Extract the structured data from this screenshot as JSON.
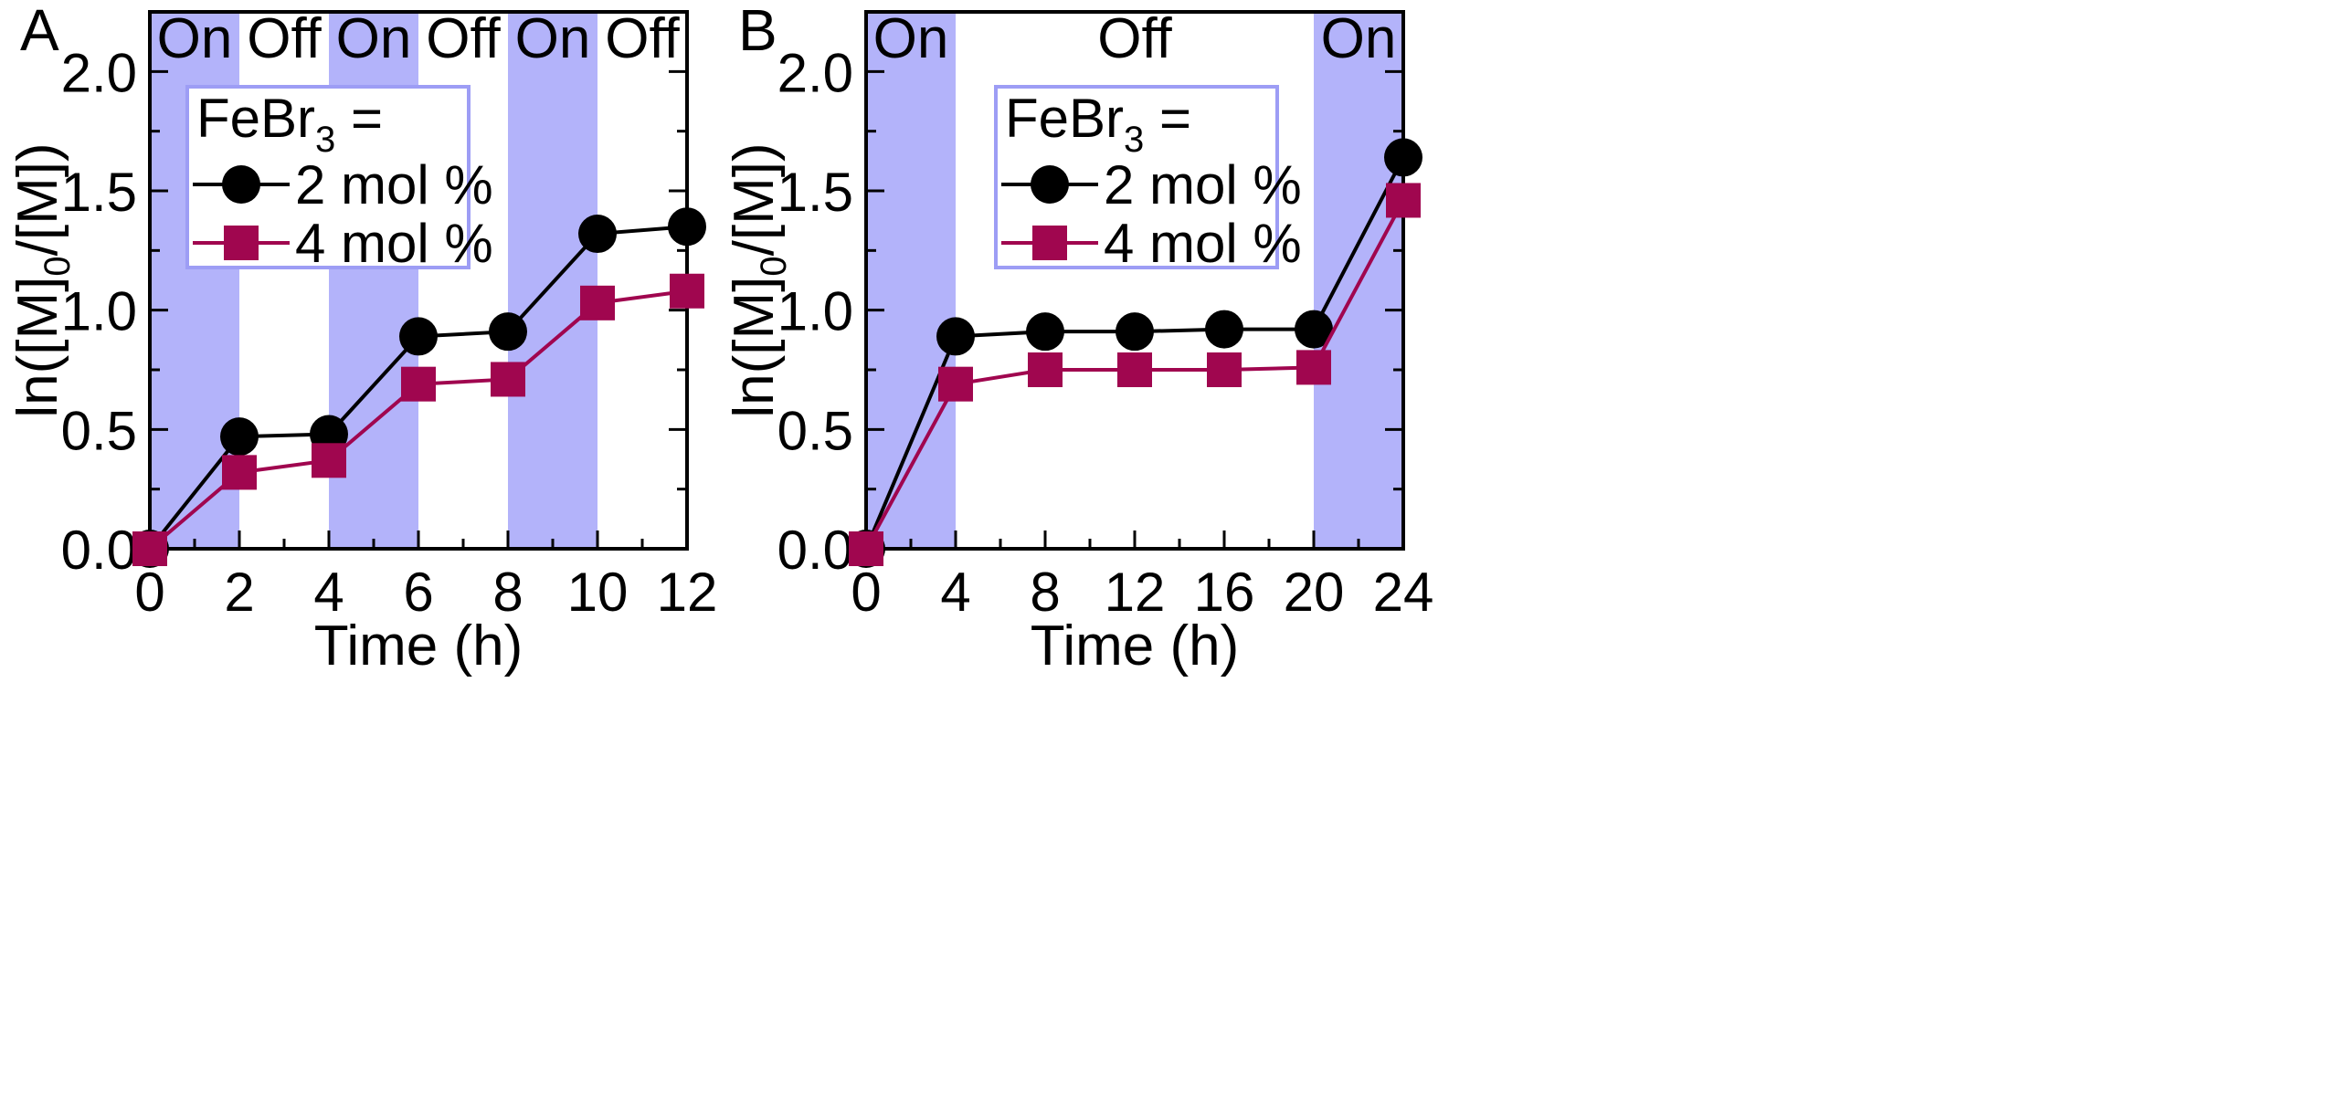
{
  "chart_data": [
    {
      "type": "line",
      "panel_label": "A",
      "xlabel": "Time (h)",
      "ylabel_parts": [
        "ln([M]",
        "0",
        "/[M])"
      ],
      "xlim": [
        0,
        12
      ],
      "ylim": [
        0,
        2.25
      ],
      "xticks": [
        0,
        2,
        4,
        6,
        8,
        10,
        12
      ],
      "xtick_labels": [
        "0",
        "2",
        "4",
        "6",
        "8",
        "10",
        "12"
      ],
      "yticks": [
        0,
        0.5,
        1.0,
        1.5,
        2.0
      ],
      "ytick_labels": [
        "0.0",
        "0.5",
        "1.0",
        "1.5",
        "2.0"
      ],
      "light_periods": [
        {
          "label": "On",
          "from": 0,
          "to": 2,
          "state": "on"
        },
        {
          "label": "Off",
          "from": 2,
          "to": 4,
          "state": "off"
        },
        {
          "label": "On",
          "from": 4,
          "to": 6,
          "state": "on"
        },
        {
          "label": "Off",
          "from": 6,
          "to": 8,
          "state": "off"
        },
        {
          "label": "On",
          "from": 8,
          "to": 10,
          "state": "on"
        },
        {
          "label": "Off",
          "from": 10,
          "to": 12,
          "state": "off"
        }
      ],
      "legend": {
        "title_main": "FeBr",
        "title_sub": "3",
        "title_suffix": " =",
        "position": "top-left"
      },
      "series": [
        {
          "name": "2 mol %",
          "marker": "circle",
          "color": "#000000",
          "x": [
            0,
            2,
            4,
            6,
            8,
            10,
            12
          ],
          "y": [
            0.0,
            0.47,
            0.48,
            0.89,
            0.91,
            1.32,
            1.35
          ]
        },
        {
          "name": "4 mol %",
          "marker": "square",
          "color": "#A0064F",
          "x": [
            0,
            2,
            4,
            6,
            8,
            10,
            12
          ],
          "y": [
            0.0,
            0.32,
            0.37,
            0.69,
            0.71,
            1.03,
            1.08
          ]
        }
      ]
    },
    {
      "type": "line",
      "panel_label": "B",
      "xlabel": "Time (h)",
      "ylabel_parts": [
        "ln([M]",
        "0",
        "/[M])"
      ],
      "xlim": [
        0,
        24
      ],
      "ylim": [
        0,
        2.25
      ],
      "xticks": [
        0,
        4,
        8,
        12,
        16,
        20,
        24
      ],
      "xtick_labels": [
        "0",
        "4",
        "8",
        "12",
        "16",
        "20",
        "24"
      ],
      "yticks": [
        0,
        0.5,
        1.0,
        1.5,
        2.0
      ],
      "ytick_labels": [
        "0.0",
        "0.5",
        "1.0",
        "1.5",
        "2.0"
      ],
      "light_periods": [
        {
          "label": "On",
          "from": 0,
          "to": 4,
          "state": "on"
        },
        {
          "label": "Off",
          "from": 4,
          "to": 20,
          "state": "off"
        },
        {
          "label": "On",
          "from": 20,
          "to": 24,
          "state": "on"
        }
      ],
      "legend": {
        "title_main": "FeBr",
        "title_sub": "3",
        "title_suffix": " =",
        "position": "top-left"
      },
      "series": [
        {
          "name": "2 mol %",
          "marker": "circle",
          "color": "#000000",
          "x": [
            0,
            4,
            8,
            12,
            16,
            20,
            24
          ],
          "y": [
            0.0,
            0.89,
            0.91,
            0.91,
            0.92,
            0.92,
            1.64
          ]
        },
        {
          "name": "4 mol %",
          "marker": "square",
          "color": "#A0064F",
          "x": [
            0,
            4,
            8,
            12,
            16,
            20,
            24
          ],
          "y": [
            0.0,
            0.69,
            0.75,
            0.75,
            0.75,
            0.76,
            1.46
          ]
        }
      ]
    }
  ],
  "colors": {
    "on_band": "#B3B3FA",
    "legend_border": "#9D9DF5",
    "axis": "#000000"
  }
}
